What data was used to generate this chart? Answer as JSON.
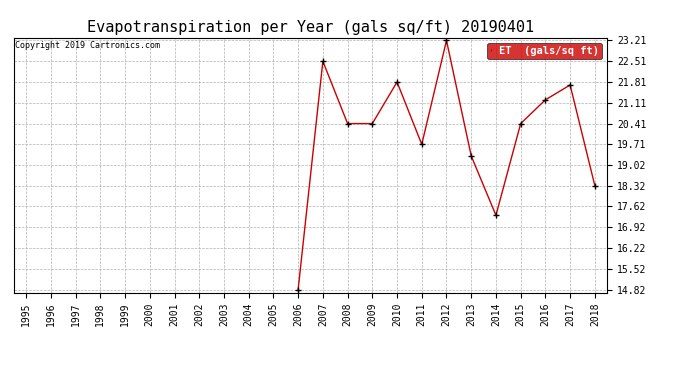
{
  "title": "Evapotranspiration per Year (gals sq/ft) 20190401",
  "copyright": "Copyright 2019 Cartronics.com",
  "legend_label": "ET  (gals/sq ft)",
  "years": [
    1995,
    1996,
    1997,
    1998,
    1999,
    2000,
    2001,
    2002,
    2003,
    2004,
    2005,
    2006,
    2007,
    2008,
    2009,
    2010,
    2011,
    2012,
    2013,
    2014,
    2015,
    2016,
    2017,
    2018
  ],
  "values": [
    null,
    null,
    null,
    null,
    null,
    null,
    null,
    null,
    null,
    null,
    null,
    14.82,
    22.51,
    20.41,
    20.41,
    21.81,
    19.71,
    23.21,
    19.32,
    17.32,
    20.41,
    21.21,
    21.71,
    18.32
  ],
  "yticks": [
    14.82,
    15.52,
    16.22,
    16.92,
    17.62,
    18.32,
    19.02,
    19.71,
    20.41,
    21.11,
    21.81,
    22.51,
    23.21
  ],
  "line_color": "#cc0000",
  "marker": "+",
  "marker_color": "#000000",
  "grid_color": "#aaaaaa",
  "bg_color": "#ffffff",
  "legend_bg": "#cc0000",
  "legend_text_color": "#ffffff",
  "title_fontsize": 11,
  "copyright_fontsize": 6,
  "tick_fontsize": 7,
  "legend_fontsize": 7.5
}
